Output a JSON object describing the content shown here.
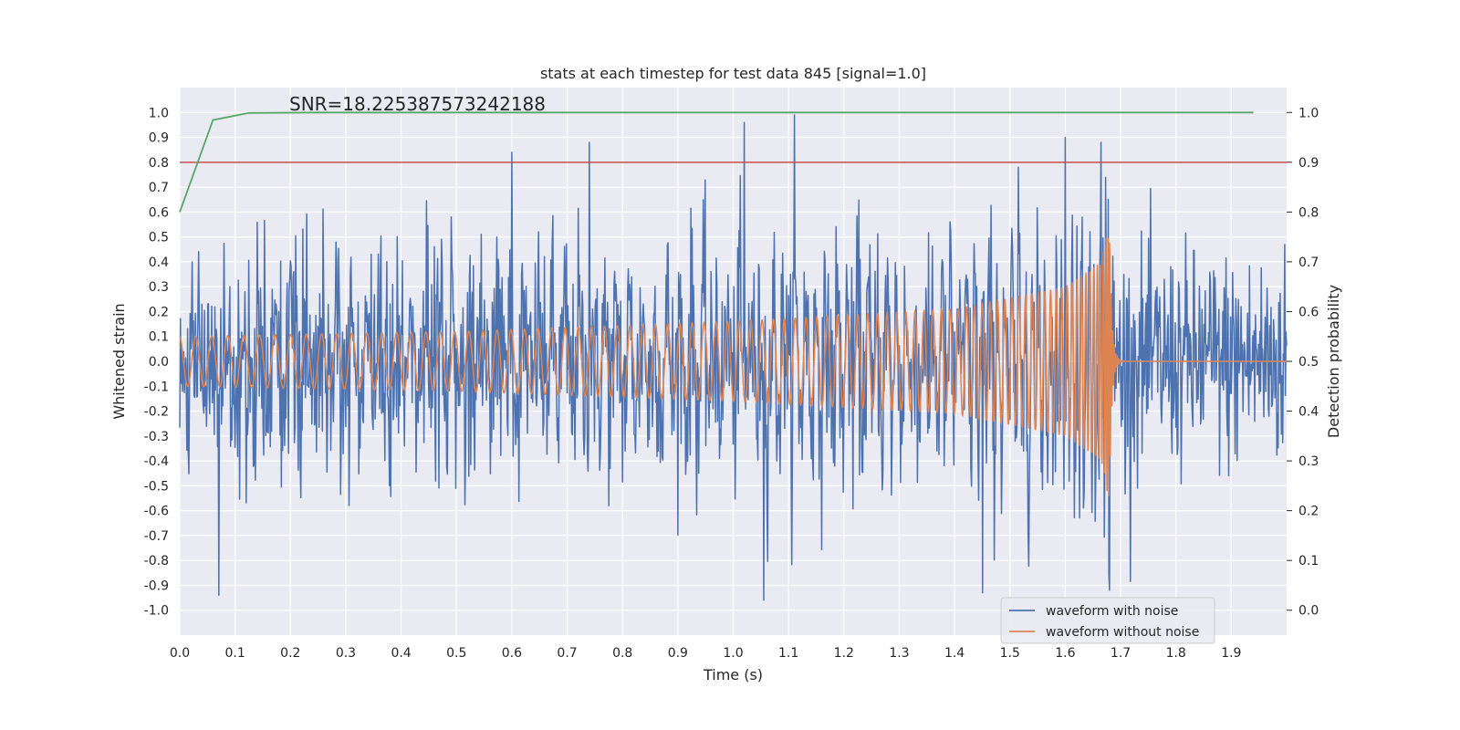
{
  "chart_data": {
    "type": "line",
    "title": "stats at each timestep for test data 845 [signal=1.0]",
    "xlabel": "Time (s)",
    "ylabel": "Whitened strain",
    "ylabel_right": "Detection probability",
    "xlim": [
      0.0,
      2.0
    ],
    "ylim": [
      -1.1,
      1.1
    ],
    "ylim_right": [
      -0.05,
      1.05
    ],
    "x_ticks": [
      "0.0",
      "0.1",
      "0.2",
      "0.3",
      "0.4",
      "0.5",
      "0.6",
      "0.7",
      "0.8",
      "0.9",
      "1.0",
      "1.1",
      "1.2",
      "1.3",
      "1.4",
      "1.5",
      "1.6",
      "1.7",
      "1.8",
      "1.9"
    ],
    "y_ticks": [
      "1.0",
      "0.9",
      "0.8",
      "0.7",
      "0.6",
      "0.5",
      "0.4",
      "0.3",
      "0.2",
      "0.1",
      "0.0",
      "-0.1",
      "-0.2",
      "-0.3",
      "-0.4",
      "-0.5",
      "-0.6",
      "-0.7",
      "-0.8",
      "-0.9",
      "-1.0"
    ],
    "y_ticks_right": [
      "1.0",
      "0.9",
      "0.8",
      "0.7",
      "0.6",
      "0.5",
      "0.4",
      "0.3",
      "0.2",
      "0.1",
      "0.0"
    ],
    "annotation": "SNR=18.225387573242188",
    "threshold": {
      "value_right": 0.9,
      "color": "#c44e52"
    },
    "detection_probability": {
      "color": "#55a868",
      "x": [
        0.0,
        0.06,
        0.125,
        0.25,
        0.5,
        1.0,
        1.5,
        1.94
      ],
      "y": [
        0.8,
        0.985,
        0.999,
        1.0,
        1.0,
        1.0,
        1.0,
        1.0
      ]
    },
    "series": [
      {
        "name": "waveform with noise",
        "color": "#4c72b0",
        "description": "noisy whitened strain, roughly within -0.95..0.99",
        "peaks": [
          {
            "x": 0.6,
            "y": 0.84
          },
          {
            "x": 0.74,
            "y": 0.88
          },
          {
            "x": 1.02,
            "y": 0.96
          },
          {
            "x": 1.11,
            "y": 0.99
          },
          {
            "x": 1.6,
            "y": 0.9
          },
          {
            "x": 1.665,
            "y": 0.88
          },
          {
            "x": 0.07,
            "y": -0.94
          },
          {
            "x": 1.055,
            "y": -0.96
          },
          {
            "x": 1.45,
            "y": -0.93
          },
          {
            "x": 1.68,
            "y": -0.92
          }
        ]
      },
      {
        "name": "waveform without noise",
        "color": "#dd8452",
        "description": "chirp signal, amplitude ~0.1 rising to ~0.58 at merger near t=1.68 s, ringdown to 0 after",
        "amplitude_points": [
          {
            "x": 0.0,
            "a": 0.1
          },
          {
            "x": 0.5,
            "a": 0.12
          },
          {
            "x": 1.0,
            "a": 0.16
          },
          {
            "x": 1.4,
            "a": 0.21
          },
          {
            "x": 1.6,
            "a": 0.3
          },
          {
            "x": 1.665,
            "a": 0.4
          },
          {
            "x": 1.68,
            "a": 0.58
          }
        ],
        "merger_time": 1.68
      }
    ],
    "legend_location": "lower-right"
  }
}
